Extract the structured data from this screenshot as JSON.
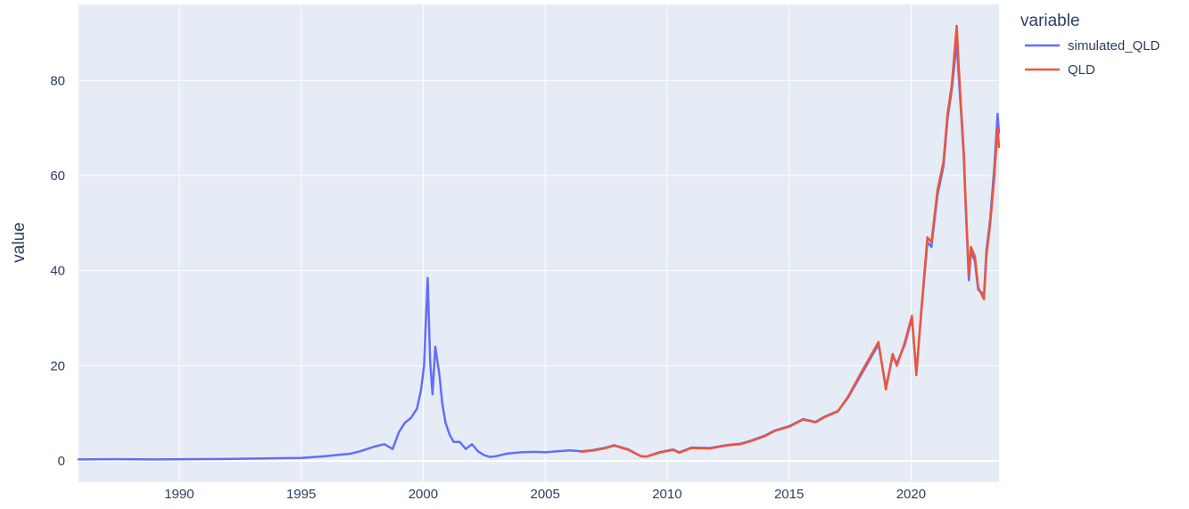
{
  "chart_data": {
    "type": "line",
    "title": "",
    "xlabel": "",
    "ylabel": "value",
    "xlim": [
      "1985-11-15",
      "2023-08-10"
    ],
    "ylim": [
      -4.5,
      96
    ],
    "grid": true,
    "plot_background": "#e5ecf6",
    "x_ticks": [
      "1990",
      "1995",
      "2000",
      "2005",
      "2010",
      "2015",
      "2020"
    ],
    "y_ticks": [
      "0",
      "20",
      "40",
      "60",
      "80"
    ],
    "legend": {
      "title": "variable",
      "position": "right"
    },
    "series": [
      {
        "name": "simulated_QLD",
        "color": "#636efa",
        "x": [
          "1985-11-15",
          "1987-06-01",
          "1989-01-01",
          "1990-06-01",
          "1992-01-01",
          "1993-06-01",
          "1995-01-01",
          "1996-01-01",
          "1997-01-01",
          "1997-06-01",
          "1998-01-01",
          "1998-06-01",
          "1998-10-01",
          "1999-01-01",
          "1999-04-01",
          "1999-07-01",
          "1999-10-01",
          "1999-12-01",
          "2000-01-15",
          "2000-03-10",
          "2000-04-15",
          "2000-05-20",
          "2000-07-01",
          "2000-09-01",
          "2000-10-15",
          "2000-12-01",
          "2001-02-01",
          "2001-04-01",
          "2001-07-01",
          "2001-10-01",
          "2002-01-01",
          "2002-04-01",
          "2002-07-01",
          "2002-10-01",
          "2003-01-01",
          "2003-06-01",
          "2004-01-01",
          "2004-08-01",
          "2005-01-01",
          "2005-07-01",
          "2006-01-01",
          "2006-07-01",
          "2007-01-01",
          "2007-07-01",
          "2007-11-01",
          "2008-06-01",
          "2008-12-01",
          "2009-03-01",
          "2009-09-01",
          "2010-04-01",
          "2010-07-01",
          "2011-01-01",
          "2011-10-01",
          "2012-06-01",
          "2013-01-01",
          "2013-06-01",
          "2014-01-01",
          "2014-06-01",
          "2015-01-01",
          "2015-08-01",
          "2016-02-01",
          "2016-06-01",
          "2017-01-01",
          "2017-06-01",
          "2018-01-01",
          "2018-09-01",
          "2018-12-20",
          "2019-04-01",
          "2019-06-01",
          "2019-10-01",
          "2020-01-15",
          "2020-03-20",
          "2020-06-01",
          "2020-09-01",
          "2020-11-01",
          "2021-02-01",
          "2021-05-01",
          "2021-07-01",
          "2021-09-01",
          "2021-11-15",
          "2021-12-15",
          "2022-01-25",
          "2022-03-01",
          "2022-03-25",
          "2022-05-15",
          "2022-06-15",
          "2022-08-15",
          "2022-10-01",
          "2022-12-28",
          "2023-02-01",
          "2023-04-01",
          "2023-06-01",
          "2023-07-20",
          "2023-08-10"
        ],
        "values": [
          0.3,
          0.35,
          0.3,
          0.35,
          0.4,
          0.5,
          0.6,
          1.0,
          1.5,
          2.0,
          3.0,
          3.5,
          2.5,
          6.0,
          8.0,
          9.0,
          11.0,
          15.0,
          20.0,
          38.5,
          21.0,
          14.0,
          24.0,
          18.0,
          12.0,
          8.0,
          5.5,
          4.0,
          4.0,
          2.5,
          3.5,
          2.0,
          1.2,
          0.8,
          1.0,
          1.5,
          1.8,
          1.9,
          1.8,
          2.0,
          2.2,
          2.0,
          2.3,
          2.8,
          3.3,
          2.4,
          1.0,
          0.9,
          1.8,
          2.4,
          1.8,
          2.8,
          2.7,
          3.3,
          3.6,
          4.2,
          5.3,
          6.4,
          7.3,
          8.8,
          8.2,
          9.2,
          10.5,
          13.3,
          18.5,
          24.5,
          15.5,
          22.0,
          20.5,
          24.5,
          30.0,
          18.5,
          31.0,
          46.0,
          45.0,
          56.0,
          62.0,
          72.0,
          78.0,
          88.0,
          81.0,
          72.0,
          64.0,
          55.0,
          38.0,
          44.0,
          42.0,
          36.0,
          35.0,
          44.0,
          51.0,
          62.0,
          73.0,
          69.0
        ]
      },
      {
        "name": "QLD",
        "color": "#ef553b",
        "x": [
          "2006-06-21",
          "2007-01-01",
          "2007-07-01",
          "2007-11-01",
          "2008-06-01",
          "2008-12-01",
          "2009-03-01",
          "2009-09-01",
          "2010-04-01",
          "2010-07-01",
          "2011-01-01",
          "2011-10-01",
          "2012-06-01",
          "2013-01-01",
          "2013-06-01",
          "2014-01-01",
          "2014-06-01",
          "2015-01-01",
          "2015-08-01",
          "2016-02-01",
          "2016-06-01",
          "2017-01-01",
          "2017-06-01",
          "2018-01-01",
          "2018-09-01",
          "2018-12-20",
          "2019-04-01",
          "2019-06-01",
          "2019-10-01",
          "2020-01-15",
          "2020-03-20",
          "2020-06-01",
          "2020-09-01",
          "2020-11-01",
          "2021-02-01",
          "2021-05-01",
          "2021-07-01",
          "2021-09-01",
          "2021-11-15",
          "2021-12-15",
          "2022-01-25",
          "2022-03-01",
          "2022-03-25",
          "2022-05-15",
          "2022-06-15",
          "2022-08-15",
          "2022-10-01",
          "2022-12-28",
          "2023-02-01",
          "2023-04-01",
          "2023-06-01",
          "2023-07-20",
          "2023-08-10"
        ],
        "values": [
          1.9,
          2.2,
          2.7,
          3.2,
          2.3,
          1.0,
          0.9,
          1.7,
          2.3,
          1.7,
          2.7,
          2.6,
          3.2,
          3.5,
          4.1,
          5.2,
          6.3,
          7.2,
          8.7,
          8.1,
          9.1,
          10.4,
          13.5,
          19.0,
          25.0,
          15.0,
          22.5,
          20.0,
          25.0,
          30.5,
          18.0,
          31.5,
          47.0,
          46.0,
          57.0,
          63.0,
          73.0,
          79.0,
          91.5,
          83.0,
          73.0,
          65.0,
          56.0,
          39.0,
          45.0,
          43.0,
          36.5,
          34.0,
          43.0,
          50.0,
          60.0,
          70.0,
          66.0
        ]
      }
    ]
  }
}
